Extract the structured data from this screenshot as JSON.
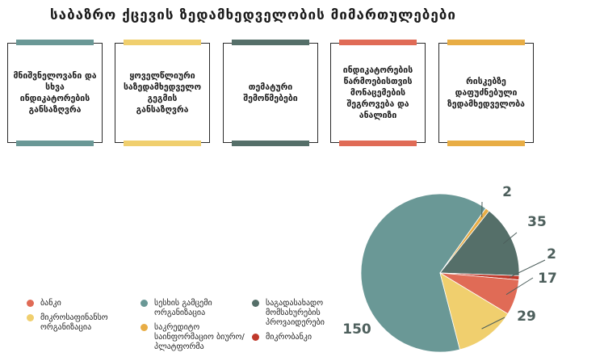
{
  "title": "საბაზრო ქცევის ზედამხედველობის მიმართულებები",
  "cards": [
    {
      "text": "მნიშვნელოვანი და სხვა ინდიკატორების განსაზღვრა",
      "color": "#6a9896"
    },
    {
      "text": "ყოველწლიური საზედამხედველო გეგმის განსაზღვრა",
      "color": "#f0cf6e"
    },
    {
      "text": "თემატური შემოწმებები",
      "color": "#556f69"
    },
    {
      "text": "ინდიკატორების წარმოებისთვის მონაცემების შეგროვება და ანალიზი",
      "color": "#e06b56"
    },
    {
      "text": "რისკებზე დაფუძნებული ზედამხედველობა",
      "color": "#e8ad45"
    }
  ],
  "chart_data": {
    "type": "pie",
    "slices": [
      {
        "label": "სესხის გამცემი ორგანიზაცია",
        "value": 150,
        "color": "#6a9896"
      },
      {
        "label": "საკრედიტო საინფორმაციო ბიურო/პლატფორმა",
        "value": 2,
        "color": "#e8ad45"
      },
      {
        "label": "საგადასახადო მომსახურების პროვაიდერები",
        "value": 35,
        "color": "#556f69"
      },
      {
        "label": "მიკრობანკი",
        "value": 2,
        "color": "#c0392b"
      },
      {
        "label": "ბანკი",
        "value": 17,
        "color": "#e06b56"
      },
      {
        "label": "მიკროსაფინანსო ორგანიზაცია",
        "value": 29,
        "color": "#f0cf6e"
      }
    ],
    "legend": [
      {
        "label": "ბანკი",
        "color": "#e06b56"
      },
      {
        "label": "მიკროსაფინანსო ორგანიზაცია",
        "color": "#f0cf6e"
      },
      {
        "label": "სესხის გამცემი ორგანიზაცია",
        "color": "#6a9896"
      },
      {
        "label": "საკრედიტო საინფორმაციო ბიურო/პლატფორმა",
        "color": "#e8ad45"
      },
      {
        "label": "საგადასახადო მომსახურების პროვაიდერები",
        "color": "#556f69"
      },
      {
        "label": "მიკრობანკი",
        "color": "#c0392b"
      }
    ]
  }
}
